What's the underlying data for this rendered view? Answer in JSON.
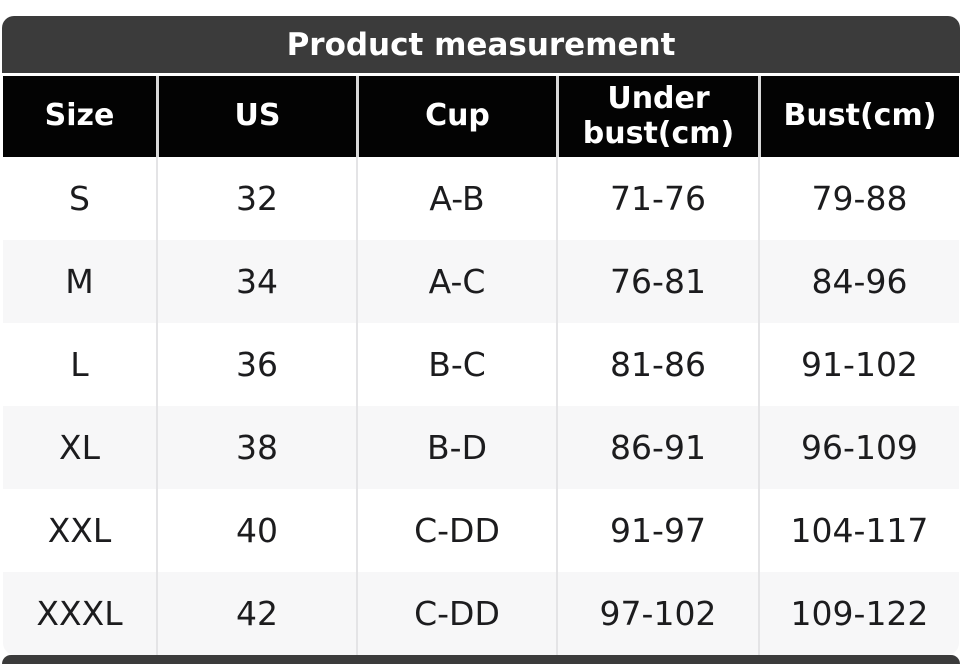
{
  "colors": {
    "title_bar_bg": "#3b3b3b",
    "header_bg": "#030303",
    "header_text": "#ffffff",
    "row_bg": "#ffffff",
    "row_alt_bg": "#f7f7f8",
    "separator": "#e4e4e6",
    "body_text": "#1c1c1e",
    "bottom_bar_bg": "#3b3b3b"
  },
  "chart_data": {
    "type": "table",
    "title": "Product measurement",
    "columns": [
      "Size",
      "US",
      "Cup",
      "Under bust(cm)",
      "Bust(cm)"
    ],
    "rows": [
      [
        "S",
        "32",
        "A-B",
        "71-76",
        "79-88"
      ],
      [
        "M",
        "34",
        "A-C",
        "76-81",
        "84-96"
      ],
      [
        "L",
        "36",
        "B-C",
        "81-86",
        "91-102"
      ],
      [
        "XL",
        "38",
        "B-D",
        "86-91",
        "96-109"
      ],
      [
        "XXL",
        "40",
        "C-DD",
        "91-97",
        "104-117"
      ],
      [
        "XXXL",
        "42",
        "C-DD",
        "97-102",
        "109-122"
      ]
    ],
    "layout": {
      "header_style": "black-bar",
      "row_striping": "even-rows-light-gray",
      "grid": "vertical-separators-only"
    }
  }
}
